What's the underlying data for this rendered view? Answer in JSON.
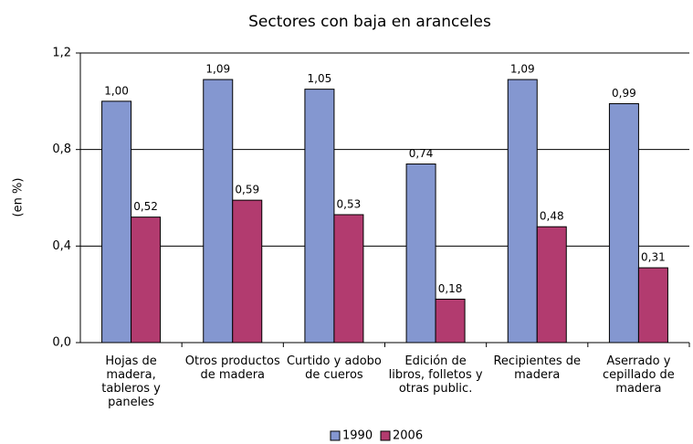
{
  "chart_data": {
    "type": "bar",
    "title": "Sectores con baja en aranceles",
    "ylabel": "(en %)",
    "categories": [
      "Hojas de madera, tableros y paneles",
      "Otros productos de madera",
      "Curtido y adobo de cueros",
      "Edición de libros, folletos y otras public.",
      "Recipientes de madera",
      "Aserrado y cepillado de madera"
    ],
    "series": [
      {
        "name": "1990",
        "color": "#8497d0",
        "values": [
          1.0,
          1.09,
          1.05,
          0.74,
          1.09,
          0.99
        ],
        "value_labels": [
          "1,00",
          "1,09",
          "1,05",
          "0,74",
          "1,09",
          "0,99"
        ]
      },
      {
        "name": "2006",
        "color": "#b23b6f",
        "values": [
          0.52,
          0.59,
          0.53,
          0.18,
          0.48,
          0.31
        ],
        "value_labels": [
          "0,52",
          "0,59",
          "0,53",
          "0,18",
          "0,48",
          "0,31"
        ]
      }
    ],
    "ylim": [
      0,
      1.2
    ],
    "yticks": [
      {
        "value": 0,
        "label": "0,0"
      },
      {
        "value": 0.4,
        "label": "0,4"
      },
      {
        "value": 0.8,
        "label": "0,8"
      },
      {
        "value": 1.2,
        "label": "1,2"
      }
    ],
    "grid": true,
    "legend": "bottom"
  }
}
